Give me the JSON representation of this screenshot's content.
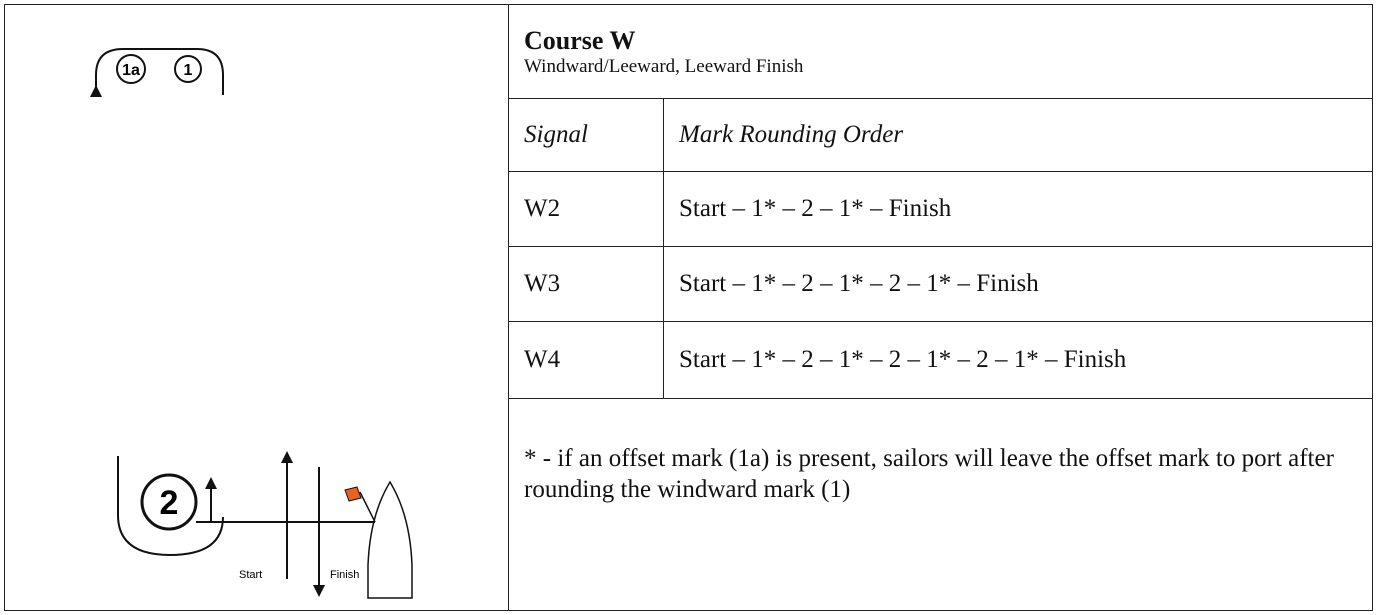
{
  "diagram": {
    "marks": [
      "1a",
      "1",
      "2"
    ],
    "start": "Start",
    "finish": "Finish"
  },
  "course": {
    "title": "Course W",
    "subtitle": "Windward/Leeward, Leeward Finish"
  },
  "table": {
    "header": [
      "Signal",
      "Mark Rounding Order"
    ],
    "rows": [
      [
        "W2",
        "Start – 1* – 2 – 1* – Finish"
      ],
      [
        "W3",
        "Start – 1* – 2 – 1* – 2 – 1* – Finish"
      ],
      [
        "W4",
        "Start – 1* – 2 – 1* – 2 – 1* – 2 – 1* – Finish"
      ]
    ]
  },
  "note": "* - if an offset mark (1a) is present, sailors will leave the offset mark to port after rounding the windward mark (1)"
}
